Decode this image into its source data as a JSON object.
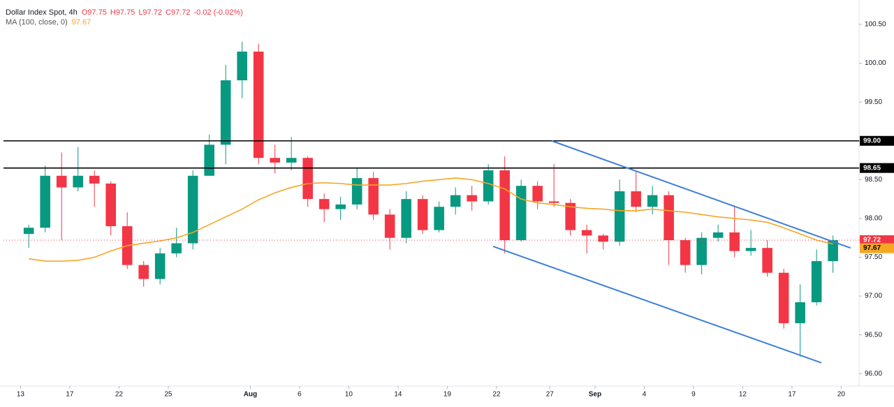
{
  "chart_data": {
    "type": "candlestick",
    "header": {
      "symbol": "Dollar Index Spot, 4h",
      "quote": [
        "O97.75",
        "H97.75",
        "L97.72",
        "C97.72",
        "-0.02 (-0.02%)"
      ],
      "indicator": "MA (100, close, 0)",
      "indicator_value": 97.67
    },
    "last_price": 97.72,
    "up_color": "#089981",
    "down_color": "#f23645",
    "candles": {
      "open": [
        97.8,
        97.88,
        98.55,
        98.4,
        98.55,
        98.45,
        97.9,
        97.4,
        97.22,
        97.55,
        97.68,
        98.55,
        98.95,
        99.78,
        100.15,
        98.78,
        98.72,
        98.78,
        98.25,
        98.12,
        98.18,
        98.52,
        98.05,
        97.75,
        98.25,
        97.85,
        98.15,
        98.3,
        98.22,
        98.62,
        97.72,
        98.42,
        98.22,
        98.2,
        97.85,
        97.78,
        97.7,
        98.35,
        98.15,
        98.3,
        97.72,
        97.4,
        97.75,
        97.82,
        97.58,
        97.62,
        97.3,
        96.65,
        96.92,
        97.45
      ],
      "high": [
        97.92,
        98.68,
        98.85,
        98.92,
        98.62,
        98.48,
        98.08,
        97.45,
        97.62,
        97.88,
        98.62,
        99.08,
        99.98,
        100.28,
        100.25,
        98.95,
        99.05,
        98.8,
        98.32,
        98.28,
        98.65,
        98.6,
        98.12,
        98.35,
        98.3,
        98.22,
        98.4,
        98.42,
        98.7,
        98.8,
        98.5,
        98.48,
        98.7,
        98.25,
        97.92,
        97.8,
        98.5,
        98.62,
        98.42,
        98.35,
        97.75,
        97.82,
        97.92,
        98.15,
        97.85,
        97.72,
        97.35,
        97.15,
        97.6,
        97.78
      ],
      "low": [
        97.62,
        97.82,
        97.72,
        98.35,
        98.15,
        97.78,
        97.35,
        97.12,
        97.15,
        97.5,
        97.6,
        98.55,
        98.7,
        99.55,
        98.7,
        98.58,
        98.62,
        98.15,
        97.95,
        97.98,
        98.12,
        97.98,
        97.6,
        97.68,
        97.8,
        97.82,
        98.05,
        98.1,
        98.18,
        97.55,
        97.7,
        98.12,
        98.15,
        97.78,
        97.55,
        97.6,
        97.65,
        98.08,
        98.05,
        97.4,
        97.3,
        97.28,
        97.7,
        97.5,
        97.52,
        97.25,
        96.58,
        96.22,
        96.88,
        97.3
      ],
      "close": [
        97.88,
        98.55,
        98.4,
        98.55,
        98.45,
        97.9,
        97.4,
        97.22,
        97.55,
        97.68,
        98.55,
        98.95,
        99.78,
        100.15,
        98.78,
        98.72,
        98.78,
        98.25,
        98.12,
        98.18,
        98.52,
        98.05,
        97.75,
        98.25,
        97.85,
        98.15,
        98.3,
        98.22,
        98.62,
        97.72,
        98.42,
        98.22,
        98.2,
        97.85,
        97.78,
        97.7,
        98.35,
        98.15,
        98.3,
        97.72,
        97.4,
        97.75,
        97.82,
        97.58,
        97.62,
        97.3,
        96.65,
        96.92,
        97.45,
        97.72
      ]
    },
    "ma": {
      "color": "#f5a623",
      "values": [
        97.48,
        97.45,
        97.45,
        97.46,
        97.5,
        97.58,
        97.65,
        97.68,
        97.71,
        97.75,
        97.82,
        97.92,
        98.02,
        98.12,
        98.24,
        98.33,
        98.4,
        98.45,
        98.46,
        98.45,
        98.43,
        98.43,
        98.43,
        98.45,
        98.48,
        98.5,
        98.52,
        98.5,
        98.45,
        98.38,
        98.25,
        98.2,
        98.18,
        98.15,
        98.13,
        98.12,
        98.1,
        98.1,
        98.12,
        98.1,
        98.08,
        98.05,
        98.02,
        98.0,
        97.98,
        97.95,
        97.88,
        97.8,
        97.72,
        97.67
      ]
    },
    "levels": [
      {
        "value": 99,
        "label": "99.00"
      },
      98.65
    ],
    "trendlines": [
      {
        "color": "#3d7fd9",
        "x": [
          32.36,
          50.57
        ],
        "y": [
          99.0,
          97.62
        ]
      },
      {
        "color": "#3d7fd9",
        "x": [
          28.79,
          48.79
        ],
        "y": [
          97.64,
          96.14
        ]
      }
    ],
    "xlim": [
      -1.04,
      51.09
    ],
    "ylim": [
      95.84,
      100.815
    ],
    "yticks": [
      {
        "value": 96,
        "label": "96.00"
      },
      {
        "value": 96.5,
        "label": "96.50"
      },
      {
        "value": 97,
        "label": "97.00"
      },
      {
        "value": 97.5,
        "label": "97.50"
      },
      {
        "value": 98,
        "label": "98.00"
      },
      {
        "value": 98.5,
        "label": "98.50"
      },
      {
        "value": 99,
        "label": "99.00"
      },
      {
        "value": 99.5,
        "label": "99.50"
      },
      {
        "value": 100,
        "label": "100.00"
      },
      {
        "value": 100.5,
        "label": "100.50"
      }
    ],
    "xticks": [
      {
        "value": 0,
        "label": "13"
      },
      {
        "value": 3,
        "label": "17"
      },
      {
        "value": 6,
        "label": "22"
      },
      {
        "value": 9,
        "label": "25"
      },
      {
        "value": 14,
        "label": "Aug"
      },
      {
        "value": 17,
        "label": "6"
      },
      {
        "value": 20,
        "label": "10"
      },
      {
        "value": 23,
        "label": "14"
      },
      {
        "value": 26,
        "label": "19"
      },
      {
        "value": 29,
        "label": "22"
      },
      {
        "value": 32.25,
        "label": "27"
      },
      {
        "value": 35,
        "label": "Sep"
      },
      {
        "value": 38,
        "label": "4"
      },
      {
        "value": 41,
        "label": "9"
      },
      {
        "value": 44,
        "label": "12"
      },
      {
        "value": 47,
        "label": "17"
      },
      {
        "value": 50,
        "label": "20"
      }
    ]
  }
}
